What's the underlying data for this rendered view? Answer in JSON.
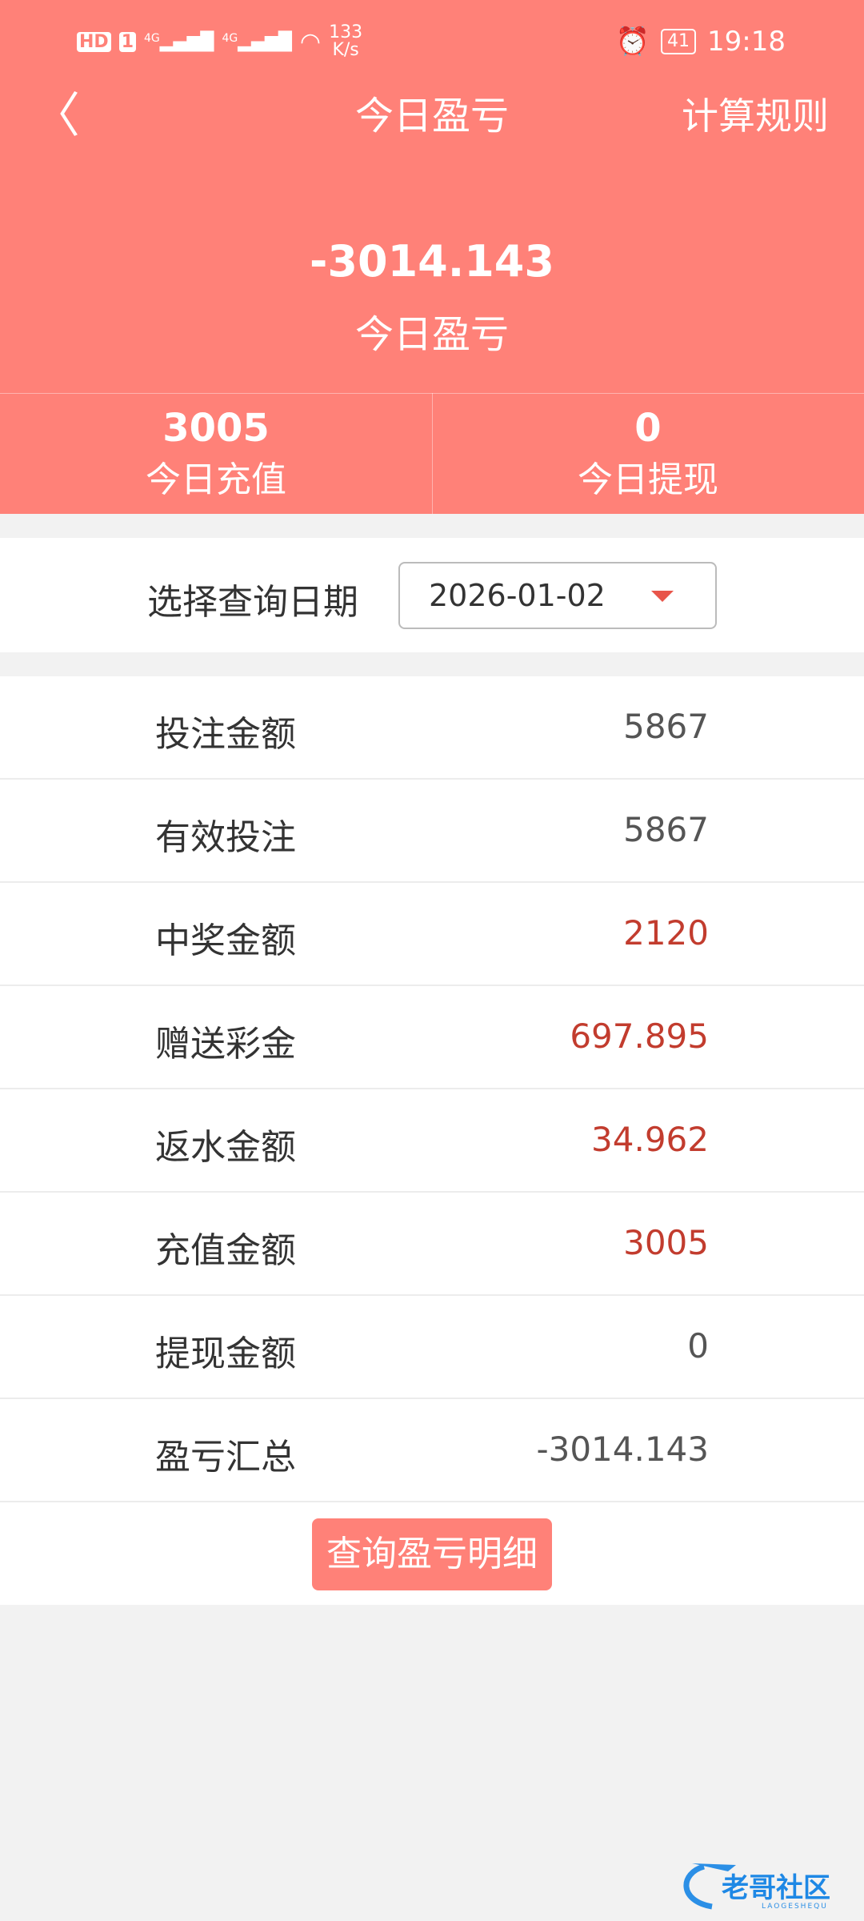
{
  "status_bar": {
    "left": [
      "HD",
      "1",
      "4G",
      "4G"
    ],
    "speed": "133",
    "speed_unit": "K/s",
    "battery": "41",
    "time": "19:18"
  },
  "header": {
    "title": "今日盈亏",
    "rules_label": "计算规则",
    "back_icon": "chevron-left-icon"
  },
  "summary": {
    "value": "-3014.143",
    "label": "今日盈亏"
  },
  "stats": [
    {
      "value": "3005",
      "label": "今日充值"
    },
    {
      "value": "0",
      "label": "今日提现"
    }
  ],
  "date": {
    "label": "选择查询日期",
    "value": "2026-01-02"
  },
  "rows": [
    {
      "label": "投注金额",
      "value": "5867",
      "red": false
    },
    {
      "label": "有效投注",
      "value": "5867",
      "red": false
    },
    {
      "label": "中奖金额",
      "value": "2120",
      "red": true
    },
    {
      "label": "赠送彩金",
      "value": "697.895",
      "red": true
    },
    {
      "label": "返水金额",
      "value": "34.962",
      "red": true
    },
    {
      "label": "充值金额",
      "value": "3005",
      "red": true
    },
    {
      "label": "提现金额",
      "value": "0",
      "red": false
    },
    {
      "label": "盈亏汇总",
      "value": "-3014.143",
      "red": false
    }
  ],
  "query_button": "查询盈亏明细",
  "watermark": {
    "text": "老哥社区",
    "sub": "LAOGESHEQU"
  },
  "colors": {
    "primary": "#ff8178",
    "value_red": "#c23c2e"
  }
}
